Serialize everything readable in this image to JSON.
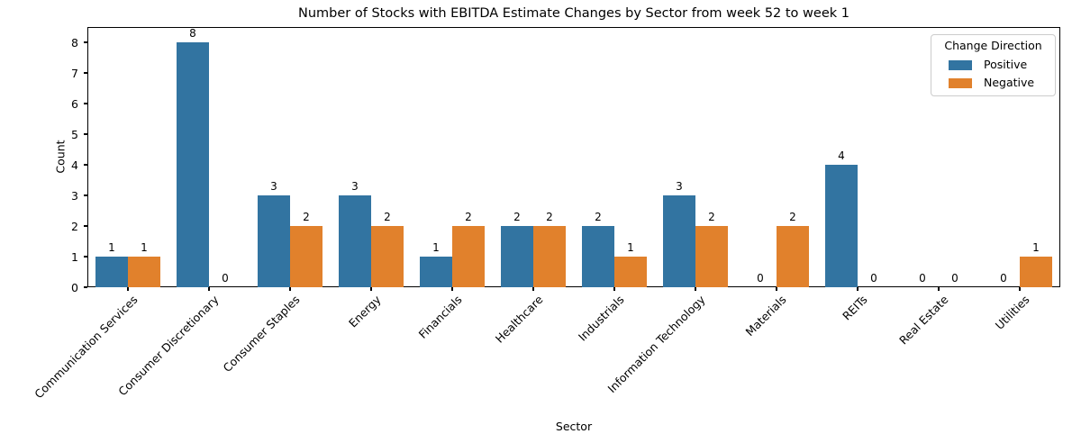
{
  "figure": {
    "background": "#ffffff",
    "text_color": "#000000",
    "spine_color": "#000000"
  },
  "chart_data": {
    "type": "bar",
    "title": "Number of Stocks with EBITDA Estimate Changes by Sector from week 52 to week 1",
    "xlabel": "Sector",
    "ylabel": "Count",
    "legend_title": "Change Direction",
    "legend_position": "upper right",
    "grid": false,
    "bar_value_labels": true,
    "x_tick_rotation": 45,
    "ylim": [
      0,
      8.5
    ],
    "yticks": [
      0,
      1,
      2,
      3,
      4,
      5,
      6,
      7,
      8
    ],
    "categories": [
      "Communication Services",
      "Consumer Discretionary",
      "Consumer Staples",
      "Energy",
      "Financials",
      "Healthcare",
      "Industrials",
      "Information Technology",
      "Materials",
      "REITs",
      "Real Estate",
      "Utilities"
    ],
    "series": [
      {
        "name": "Positive",
        "color": "#3274a1",
        "values": [
          1,
          8,
          3,
          3,
          1,
          2,
          2,
          3,
          0,
          4,
          0,
          0
        ]
      },
      {
        "name": "Negative",
        "color": "#e1812c",
        "values": [
          1,
          0,
          2,
          2,
          2,
          2,
          1,
          2,
          2,
          0,
          0,
          1
        ]
      }
    ]
  }
}
